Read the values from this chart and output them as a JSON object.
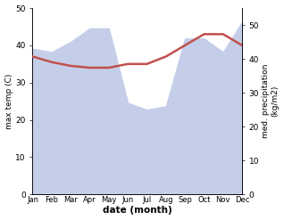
{
  "months": [
    "Jan",
    "Feb",
    "Mar",
    "Apr",
    "May",
    "Jun",
    "Jul",
    "Aug",
    "Sep",
    "Oct",
    "Nov",
    "Dec"
  ],
  "month_indices": [
    0,
    1,
    2,
    3,
    4,
    5,
    6,
    7,
    8,
    9,
    10,
    11
  ],
  "temperature": [
    37,
    35.5,
    34.5,
    34,
    34,
    35,
    35,
    37,
    40,
    43,
    43,
    40
  ],
  "precipitation": [
    43,
    42,
    45,
    49,
    49,
    27,
    25,
    26,
    46,
    46,
    42,
    51
  ],
  "temp_color": "#c0504d",
  "precip_fill_color": "#c5cee8",
  "temp_ylim": [
    0,
    50
  ],
  "precip_ylim": [
    0,
    55
  ],
  "temp_yticks": [
    0,
    10,
    20,
    30,
    40,
    50
  ],
  "precip_yticks": [
    0,
    10,
    20,
    30,
    40,
    50
  ],
  "xlabel": "date (month)",
  "ylabel_left": "max temp (C)",
  "ylabel_right": "med. precipitation\n(kg/m2)",
  "figsize": [
    3.18,
    2.47
  ],
  "dpi": 100
}
